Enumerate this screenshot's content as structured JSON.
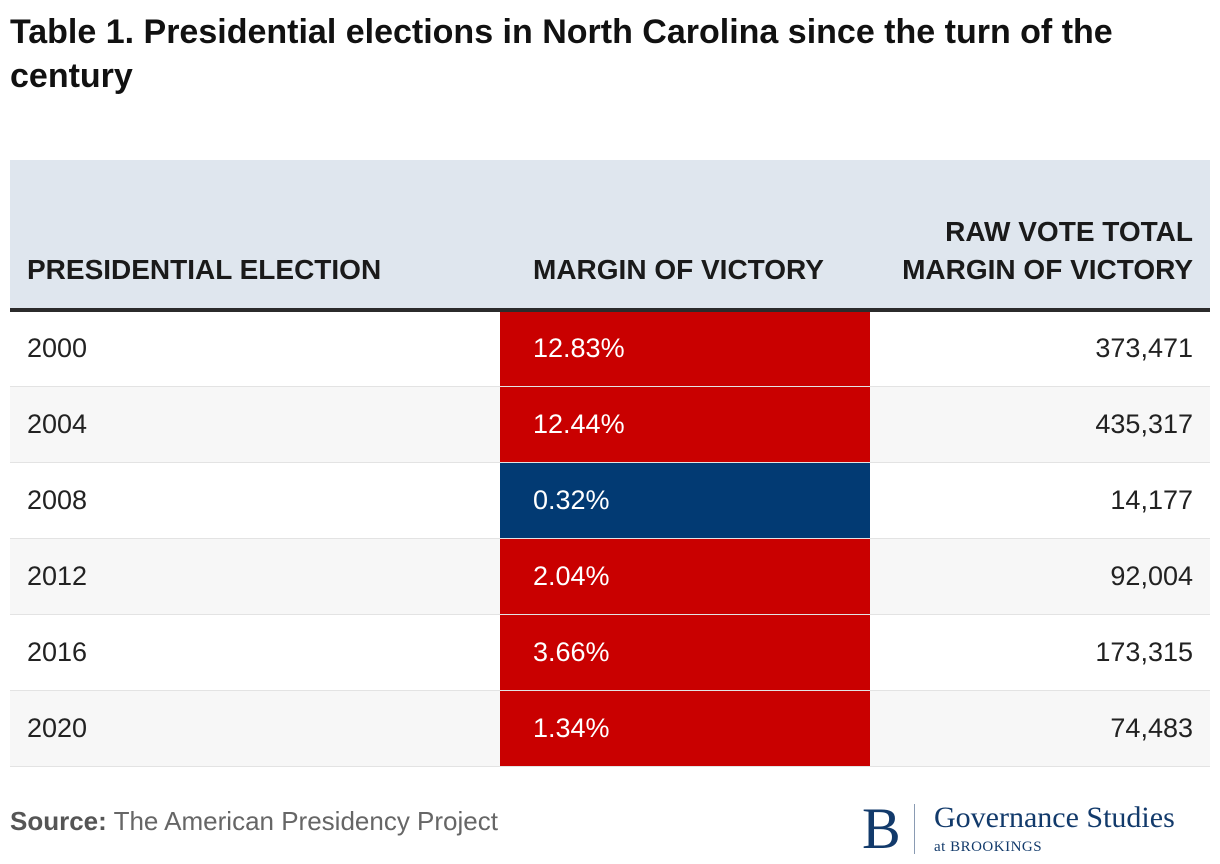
{
  "chart_data": {
    "type": "table",
    "title": "Table 1. Presidential elections in North Carolina since the turn of the century",
    "columns": [
      "PRESIDENTIAL ELECTION",
      "MARGIN OF VICTORY",
      "RAW VOTE TOTAL MARGIN OF VICTORY"
    ],
    "rows": [
      {
        "election": "2000",
        "margin": "12.83%",
        "raw_margin": "373,471",
        "color": "#c90000"
      },
      {
        "election": "2004",
        "margin": "12.44%",
        "raw_margin": "435,317",
        "color": "#c90000"
      },
      {
        "election": "2008",
        "margin": "0.32%",
        "raw_margin": "14,177",
        "color": "#023a73"
      },
      {
        "election": "2012",
        "margin": "2.04%",
        "raw_margin": "92,004",
        "color": "#c90000"
      },
      {
        "election": "2016",
        "margin": "3.66%",
        "raw_margin": "173,315",
        "color": "#c90000"
      },
      {
        "election": "2020",
        "margin": "1.34%",
        "raw_margin": "74,483",
        "color": "#c90000"
      }
    ]
  },
  "footer": {
    "source_label": "Source:",
    "source_text": "The American Presidency Project"
  },
  "logo": {
    "mark": "B",
    "name": "Governance Studies",
    "sub": "at BROOKINGS"
  },
  "colors": {
    "republican": "#c90000",
    "democrat": "#023a73",
    "header_bg": "#dfe6ee"
  }
}
